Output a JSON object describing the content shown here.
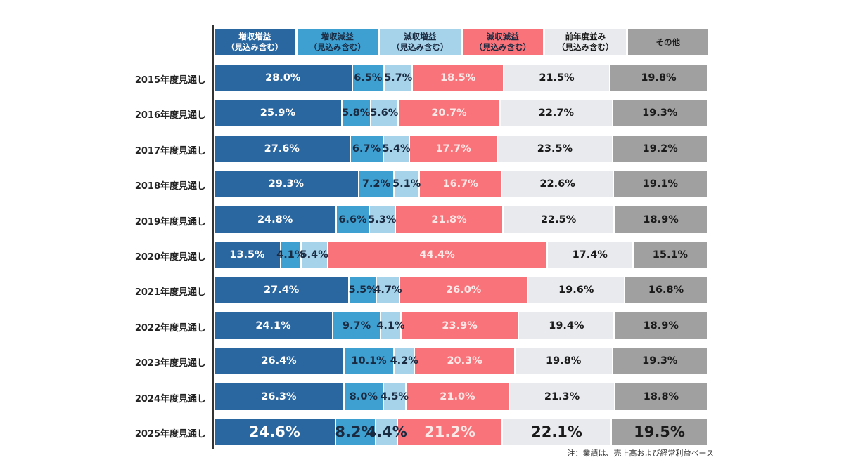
{
  "chart_data": {
    "type": "bar",
    "orientation": "horizontal",
    "stacked": true,
    "normalized_to": 100,
    "title": "",
    "xlabel": "",
    "ylabel": "",
    "xlim": [
      0,
      100
    ],
    "grid": false,
    "legend_placement": "top",
    "categories": [
      "2015年度見通し",
      "2016年度見通し",
      "2017年度見通し",
      "2018年度見通し",
      "2019年度見通し",
      "2020年度見通し",
      "2021年度見通し",
      "2022年度見通し",
      "2023年度見通し",
      "2024年度見通し",
      "2025年度見通し"
    ],
    "series": [
      {
        "name": "増収増益（見込み含む）",
        "label_lines": [
          "増収増益",
          "（見込み含む）"
        ],
        "color": "#2a66a0",
        "text_color": "#ffffff",
        "legend_text_color": "#ffffff",
        "values": [
          28.0,
          25.9,
          27.6,
          29.3,
          24.8,
          13.5,
          27.4,
          24.1,
          26.4,
          26.3,
          24.6
        ]
      },
      {
        "name": "増収減益（見込み含む）",
        "label_lines": [
          "増収減益",
          "（見込み含む）"
        ],
        "color": "#3e9fd1",
        "text_color": "#1a2a40",
        "legend_text_color": "#1a2a40",
        "values": [
          6.5,
          5.8,
          6.7,
          7.2,
          6.6,
          4.1,
          5.5,
          9.7,
          10.1,
          8.0,
          8.2
        ]
      },
      {
        "name": "減収増益（見込み含む）",
        "label_lines": [
          "減収増益",
          "（見込み含む）"
        ],
        "color": "#a6d3ea",
        "text_color": "#1a2a40",
        "legend_text_color": "#1a2a40",
        "values": [
          5.7,
          5.6,
          5.4,
          5.1,
          5.3,
          5.4,
          4.7,
          4.1,
          4.2,
          4.5,
          4.4
        ]
      },
      {
        "name": "減収減益（見込み含む）",
        "label_lines": [
          "減収減益",
          "（見込み含む）"
        ],
        "color": "#f8747a",
        "text_color": "#fde8e8",
        "legend_text_color": "#1a2a40",
        "values": [
          18.5,
          20.7,
          17.7,
          16.7,
          21.8,
          44.4,
          26.0,
          23.9,
          20.3,
          21.0,
          21.2
        ]
      },
      {
        "name": "前年度並み（見込み含む）",
        "label_lines": [
          "前年度並み",
          "（見込み含む）"
        ],
        "color": "#e8eaee",
        "text_color": "#1a1a1a",
        "legend_text_color": "#1a1a1a",
        "values": [
          21.5,
          22.7,
          23.5,
          22.6,
          22.5,
          17.4,
          19.6,
          19.4,
          19.8,
          21.3,
          22.1
        ]
      },
      {
        "name": "その他",
        "label_lines": [
          "その他"
        ],
        "color": "#a0a0a0",
        "text_color": "#1a1a1a",
        "legend_text_color": "#1a1a1a",
        "values": [
          19.8,
          19.3,
          19.2,
          19.1,
          18.9,
          15.1,
          16.8,
          18.9,
          19.3,
          18.8,
          19.5
        ]
      }
    ],
    "data_labels_format": "{value:.1f}%",
    "highlight_category": "2025年度見通し",
    "annotations": [
      "注：業績は、売上高および経常利益ベース"
    ]
  },
  "note": "注：業績は、売上高および経常利益ベース"
}
